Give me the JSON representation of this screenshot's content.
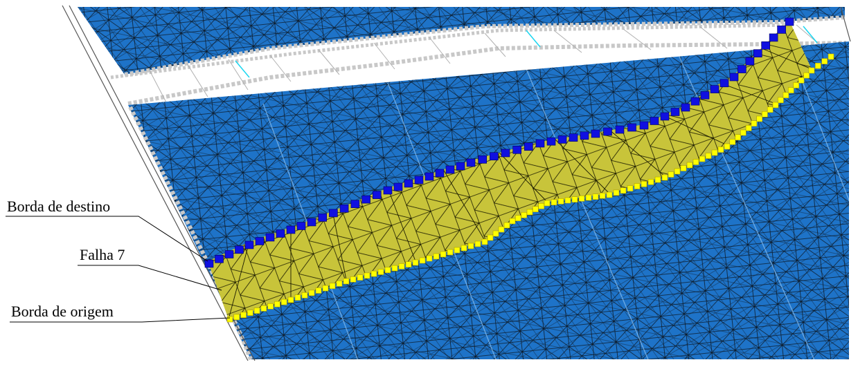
{
  "labels": {
    "target_edge": "Borda de destino",
    "fault": "Falha 7",
    "source_edge": "Borda de origem"
  },
  "colors": {
    "mesh_blue": "#1e73c8",
    "mesh_lines": "#111111",
    "fault_surface": "#c8c43a",
    "fault_surface_dark": "#a9a52c",
    "target_edge_markers": "#1010e0",
    "source_edge_markers": "#ffff00",
    "horizon_border": "#c8c8c8",
    "cyan_lines": "#19d6f0",
    "background": "#ffffff"
  }
}
